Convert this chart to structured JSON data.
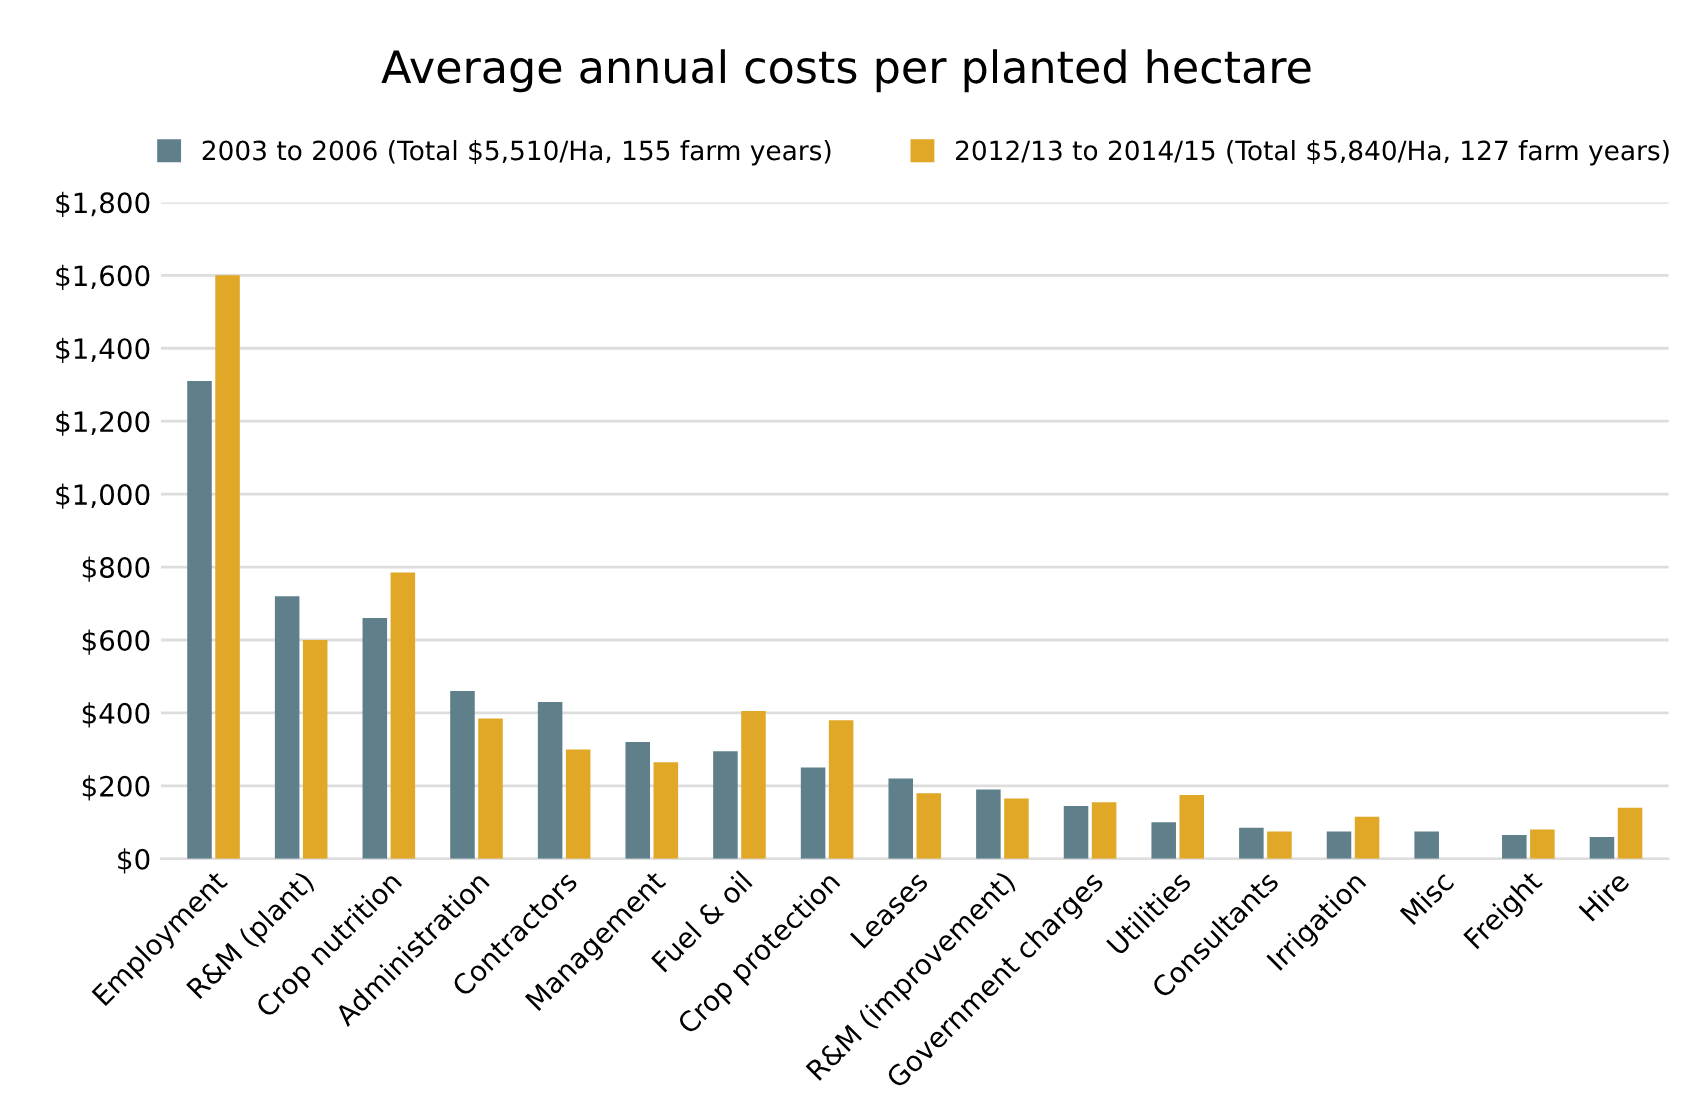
{
  "chart_data": {
    "type": "bar",
    "title": "Average annual costs per planted hectare",
    "categories": [
      "Employment",
      "R&M (plant)",
      "Crop nutrition",
      "Administration",
      "Contractors",
      "Management",
      "Fuel & oil",
      "Crop protection",
      "Leases",
      "R&M (improvement)",
      "Government charges",
      "Utilities",
      "Consultants",
      "Irrigation",
      "Misc",
      "Freight",
      "Hire"
    ],
    "series": [
      {
        "name": "2003 to 2006 (Total $5,510/Ha, 155 farm years)",
        "color": "#5f7f8b",
        "values": [
          1310,
          720,
          660,
          460,
          430,
          320,
          295,
          250,
          220,
          190,
          145,
          100,
          85,
          75,
          75,
          65,
          60
        ]
      },
      {
        "name": "2012/13 to 2014/15 (Total $5,840/Ha, 127 farm years)",
        "color": "#e0a826",
        "values": [
          1600,
          600,
          785,
          385,
          300,
          265,
          405,
          380,
          180,
          165,
          155,
          175,
          75,
          115,
          null,
          80,
          140
        ]
      }
    ],
    "ylim": [
      0,
      1800
    ],
    "yticks": [
      {
        "value": 0,
        "label": "$0"
      },
      {
        "value": 200,
        "label": "$200"
      },
      {
        "value": 400,
        "label": "$400"
      },
      {
        "value": 600,
        "label": "$600"
      },
      {
        "value": 800,
        "label": "$800"
      },
      {
        "value": 1000,
        "label": "$1,000"
      },
      {
        "value": 1200,
        "label": "$1,200"
      },
      {
        "value": 1400,
        "label": "$1,400"
      },
      {
        "value": 1600,
        "label": "$1,600"
      },
      {
        "value": 1800,
        "label": "$1,800"
      }
    ],
    "grid": "y",
    "legend": "top"
  }
}
